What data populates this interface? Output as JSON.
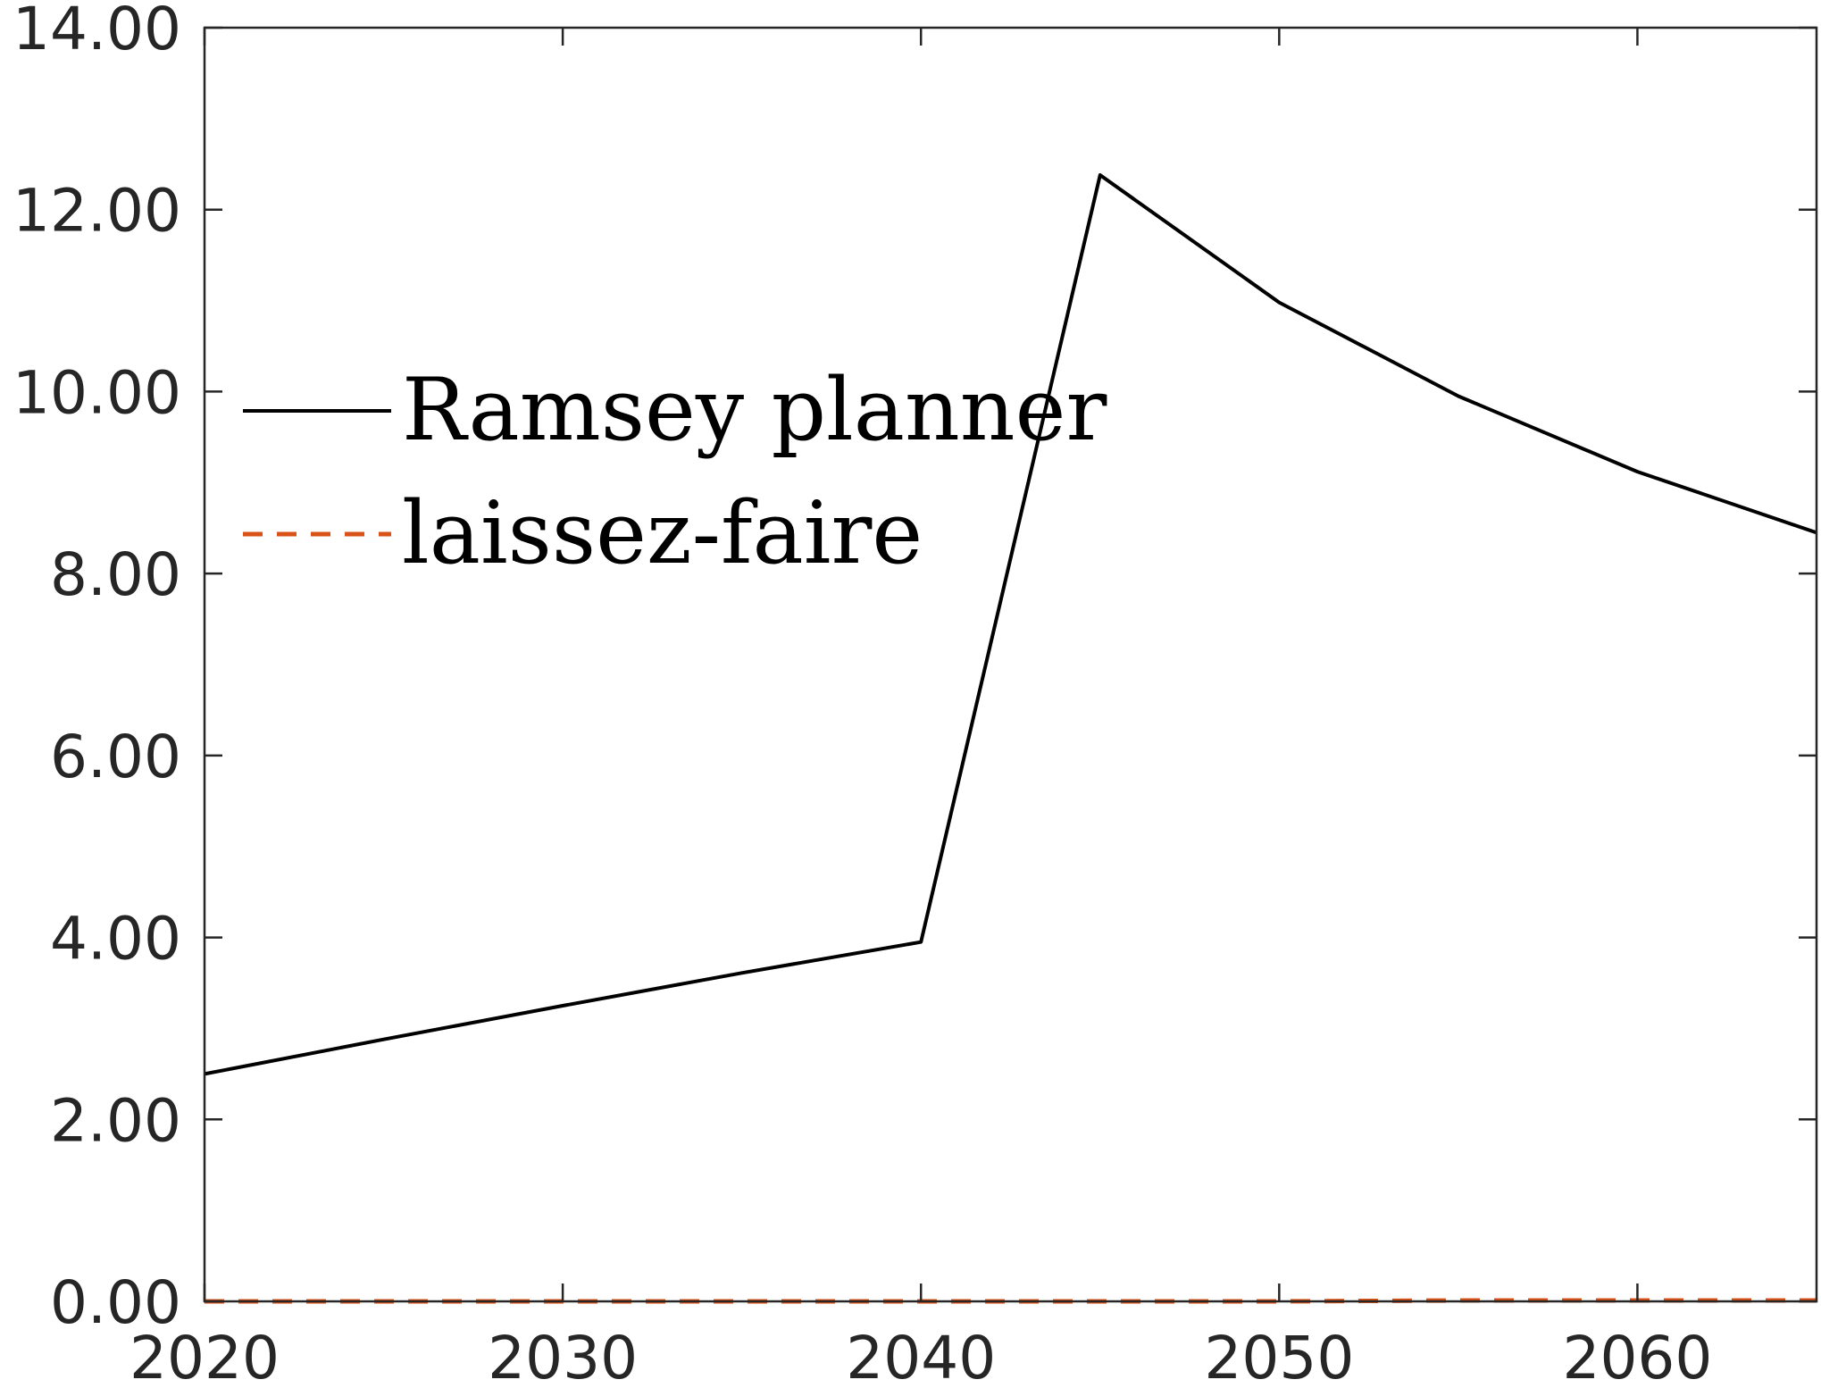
{
  "chart_data": {
    "type": "line",
    "title": "",
    "xlabel": "",
    "ylabel": "",
    "xlim": [
      2020,
      2065
    ],
    "ylim": [
      0,
      14
    ],
    "xticks": [
      2020,
      2030,
      2040,
      2050,
      2060
    ],
    "xtick_labels": [
      "2020",
      "2030",
      "2040",
      "2050",
      "2060"
    ],
    "yticks": [
      0,
      2,
      4,
      6,
      8,
      10,
      12,
      14
    ],
    "ytick_labels": [
      "0.00",
      "2.00",
      "4.00",
      "6.00",
      "8.00",
      "10.00",
      "12.00",
      "14.00"
    ],
    "grid": false,
    "legend_position": "upper-left",
    "series": [
      {
        "name": "Ramsey planner",
        "color": "#000000",
        "style": "solid",
        "x": [
          2020,
          2025,
          2030,
          2035,
          2040,
          2045,
          2050,
          2055,
          2060,
          2065
        ],
        "y": [
          2.5,
          2.88,
          3.25,
          3.61,
          3.95,
          12.38,
          10.98,
          9.95,
          9.12,
          8.45
        ]
      },
      {
        "name": "laissez-faire",
        "color": "#D95319",
        "style": "dashed",
        "x": [
          2020,
          2025,
          2030,
          2035,
          2040,
          2045,
          2050,
          2055,
          2060,
          2065
        ],
        "y": [
          0.0,
          0.0,
          0.0,
          0.0,
          0.0,
          0.0,
          0.0,
          0.01,
          0.01,
          0.01
        ]
      }
    ]
  }
}
